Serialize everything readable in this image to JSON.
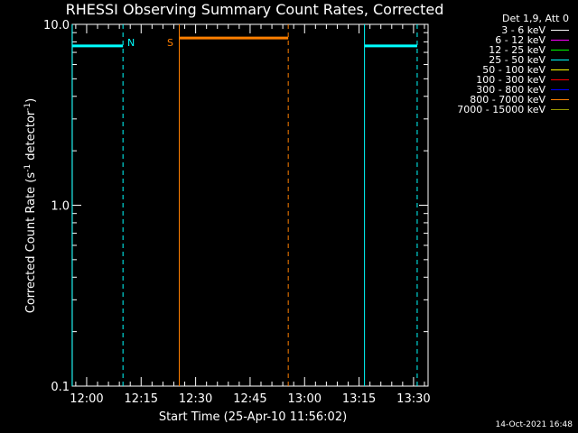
{
  "chart_data": {
    "type": "line",
    "title": "RHESSI Observing Summary Count Rates, Corrected",
    "xlabel": "Start Time (25-Apr-10 11:56:02)",
    "ylabel_main": "Corrected Count Rate (s",
    "ylabel_exp1": "-1",
    "ylabel_mid": " detector",
    "ylabel_exp2": "-1",
    "ylabel_end": ")",
    "yscale": "log",
    "ylim": [
      0.1,
      10.0
    ],
    "xlim": [
      "11:56:02",
      "13:34:00"
    ],
    "x_ticks": [
      "12:00",
      "12:15",
      "12:30",
      "12:45",
      "13:00",
      "13:15",
      "13:30"
    ],
    "x_tick_minutes": [
      0,
      15,
      30,
      45,
      60,
      75,
      90
    ],
    "y_ticks": [
      "0.1",
      "1.0",
      "10.0"
    ],
    "y_tick_values": [
      0.1,
      1.0,
      10.0
    ],
    "series": [
      {
        "name": "25 - 50 keV",
        "color": "#00ffff",
        "segments": [
          {
            "x": [
              "11:56:00",
              "12:10:00"
            ],
            "y": 7.6
          },
          {
            "x": [
              "13:16:30",
              "13:31:00"
            ],
            "y": 7.6
          }
        ]
      },
      {
        "name": "800 - 7000 keV",
        "color": "#ff7f00",
        "segments": [
          {
            "x": [
              "12:25:30",
              "12:55:30"
            ],
            "y": 8.4
          }
        ]
      }
    ],
    "events": [
      {
        "label": "",
        "time": "11:56:00",
        "style": "solid",
        "color": "#00ffff"
      },
      {
        "label": "N",
        "time": "12:10:00",
        "style": "dashed",
        "color": "#00ffff"
      },
      {
        "label": "S",
        "time": "12:25:30",
        "style": "solid",
        "color": "#ff7f00"
      },
      {
        "label": "",
        "time": "12:55:30",
        "style": "dashed",
        "color": "#ff7f00"
      },
      {
        "label": "",
        "time": "13:16:30",
        "style": "solid",
        "color": "#00ffff"
      },
      {
        "label": "",
        "time": "13:31:00",
        "style": "dashed",
        "color": "#00ffff"
      }
    ],
    "legend": {
      "title": "Det 1,9, Att 0",
      "placement": "right",
      "entries": [
        {
          "label": "3 - 6 keV",
          "color": "#ffffff"
        },
        {
          "label": "6 - 12 keV",
          "color": "#ff00ff"
        },
        {
          "label": "12 - 25 keV",
          "color": "#00ff00"
        },
        {
          "label": "25 - 50 keV",
          "color": "#00ffff"
        },
        {
          "label": "50 - 100 keV",
          "color": "#ffff00"
        },
        {
          "label": "100 - 300 keV",
          "color": "#ff0000"
        },
        {
          "label": "300 - 800 keV",
          "color": "#0000ff"
        },
        {
          "label": "800 - 7000 keV",
          "color": "#ff7f00"
        },
        {
          "label": "7000 - 15000 keV",
          "color": "#999900"
        }
      ]
    },
    "timestamp": "14-Oct-2021 16:48"
  }
}
